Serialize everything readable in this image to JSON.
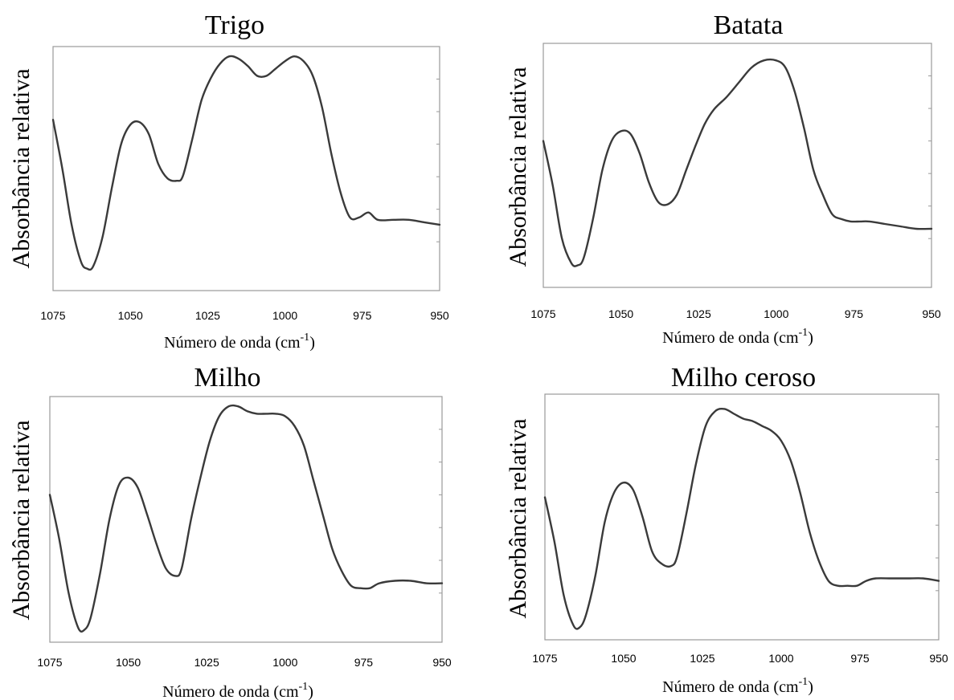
{
  "chart_data": [
    {
      "type": "line",
      "title": "Trigo",
      "xlabel_main": "Número de onda (cm",
      "xlabel_sup": "-1",
      "xlabel_end": ")",
      "ylabel": "Absorbância relativa",
      "xlim": [
        1075,
        950
      ],
      "ylim": [
        0,
        1
      ],
      "x_ticks": [
        1075,
        1050,
        1025,
        1000,
        975,
        950
      ],
      "x_tick_labels": [
        "1075",
        "1050",
        "1025",
        "1000",
        "975",
        "950"
      ],
      "series": [
        {
          "x": [
            1075,
            1072,
            1069,
            1066,
            1064,
            1062,
            1059,
            1056,
            1053,
            1050,
            1047,
            1044,
            1041,
            1038,
            1035,
            1033,
            1030,
            1027,
            1024,
            1021,
            1018,
            1015,
            1012,
            1009,
            1006,
            1003,
            1000,
            997,
            994,
            991,
            988,
            985,
            982,
            979,
            976,
            973,
            970,
            965,
            960,
            955,
            950
          ],
          "y": [
            0.7,
            0.5,
            0.27,
            0.12,
            0.09,
            0.1,
            0.22,
            0.42,
            0.6,
            0.68,
            0.69,
            0.64,
            0.52,
            0.46,
            0.45,
            0.47,
            0.62,
            0.78,
            0.87,
            0.93,
            0.96,
            0.95,
            0.92,
            0.88,
            0.88,
            0.91,
            0.94,
            0.96,
            0.94,
            0.88,
            0.75,
            0.56,
            0.4,
            0.3,
            0.3,
            0.32,
            0.29,
            0.29,
            0.29,
            0.28,
            0.27
          ]
        }
      ]
    },
    {
      "type": "line",
      "title": "Batata",
      "xlabel_main": "Número de onda (cm",
      "xlabel_sup": "-1",
      "xlabel_end": ")",
      "ylabel": "Absorbância relativa",
      "xlim": [
        1075,
        950
      ],
      "ylim": [
        0,
        1
      ],
      "x_ticks": [
        1075,
        1050,
        1025,
        1000,
        975,
        950
      ],
      "x_tick_labels": [
        "1075",
        "1050",
        "1025",
        "1000",
        "975",
        "950"
      ],
      "series": [
        {
          "x": [
            1075,
            1072,
            1069,
            1066,
            1064,
            1062,
            1059,
            1056,
            1053,
            1050,
            1047,
            1044,
            1041,
            1038,
            1035,
            1032,
            1029,
            1026,
            1023,
            1020,
            1016,
            1012,
            1008,
            1004,
            1000,
            997,
            994,
            991,
            988,
            985,
            982,
            979,
            976,
            973,
            970,
            965,
            960,
            955,
            950
          ],
          "y": [
            0.6,
            0.42,
            0.2,
            0.1,
            0.09,
            0.12,
            0.28,
            0.48,
            0.6,
            0.64,
            0.63,
            0.55,
            0.43,
            0.35,
            0.34,
            0.38,
            0.48,
            0.58,
            0.67,
            0.73,
            0.78,
            0.84,
            0.9,
            0.93,
            0.93,
            0.9,
            0.8,
            0.65,
            0.48,
            0.38,
            0.3,
            0.28,
            0.27,
            0.27,
            0.27,
            0.26,
            0.25,
            0.24,
            0.24
          ]
        }
      ]
    },
    {
      "type": "line",
      "title": "Milho",
      "xlabel_main": "Número de onda (cm",
      "xlabel_sup": "-1",
      "xlabel_end": ")",
      "ylabel": "Absorbância relativa",
      "xlim": [
        1075,
        950
      ],
      "ylim": [
        0,
        1
      ],
      "x_ticks": [
        1075,
        1050,
        1025,
        1000,
        975,
        950
      ],
      "x_tick_labels": [
        "1075",
        "1050",
        "1025",
        "1000",
        "975",
        "950"
      ],
      "series": [
        {
          "x": [
            1075,
            1072,
            1069,
            1066,
            1064,
            1062,
            1059,
            1056,
            1053,
            1050,
            1047,
            1044,
            1041,
            1038,
            1035,
            1033,
            1030,
            1027,
            1024,
            1021,
            1018,
            1015,
            1012,
            1009,
            1006,
            1003,
            1000,
            997,
            994,
            991,
            988,
            985,
            982,
            979,
            976,
            973,
            970,
            965,
            960,
            955,
            950
          ],
          "y": [
            0.6,
            0.42,
            0.2,
            0.06,
            0.05,
            0.1,
            0.28,
            0.5,
            0.64,
            0.67,
            0.63,
            0.52,
            0.4,
            0.3,
            0.27,
            0.3,
            0.5,
            0.67,
            0.82,
            0.92,
            0.96,
            0.96,
            0.94,
            0.93,
            0.93,
            0.93,
            0.92,
            0.88,
            0.8,
            0.66,
            0.52,
            0.38,
            0.29,
            0.23,
            0.22,
            0.22,
            0.24,
            0.25,
            0.25,
            0.24,
            0.24
          ]
        }
      ]
    },
    {
      "type": "line",
      "title": "Milho ceroso",
      "xlabel_main": "Número de onda (cm",
      "xlabel_sup": "-1",
      "xlabel_end": ")",
      "ylabel": "Absorbância relativa",
      "xlim": [
        1075,
        950
      ],
      "ylim": [
        0,
        1
      ],
      "x_ticks": [
        1075,
        1050,
        1025,
        1000,
        975,
        950
      ],
      "x_tick_labels": [
        "1075",
        "1050",
        "1025",
        "1000",
        "975",
        "950"
      ],
      "series": [
        {
          "x": [
            1075,
            1072,
            1069,
            1066,
            1064,
            1062,
            1059,
            1056,
            1053,
            1050,
            1047,
            1044,
            1041,
            1038,
            1035,
            1033,
            1030,
            1027,
            1024,
            1021,
            1018,
            1015,
            1012,
            1009,
            1006,
            1003,
            1000,
            997,
            994,
            991,
            988,
            985,
            982,
            979,
            976,
            973,
            970,
            965,
            960,
            955,
            950
          ],
          "y": [
            0.58,
            0.4,
            0.18,
            0.06,
            0.05,
            0.1,
            0.26,
            0.48,
            0.6,
            0.64,
            0.61,
            0.5,
            0.36,
            0.31,
            0.3,
            0.34,
            0.52,
            0.72,
            0.87,
            0.93,
            0.94,
            0.92,
            0.9,
            0.89,
            0.87,
            0.85,
            0.81,
            0.73,
            0.6,
            0.44,
            0.32,
            0.24,
            0.22,
            0.22,
            0.22,
            0.24,
            0.25,
            0.25,
            0.25,
            0.25,
            0.24
          ]
        }
      ]
    }
  ]
}
